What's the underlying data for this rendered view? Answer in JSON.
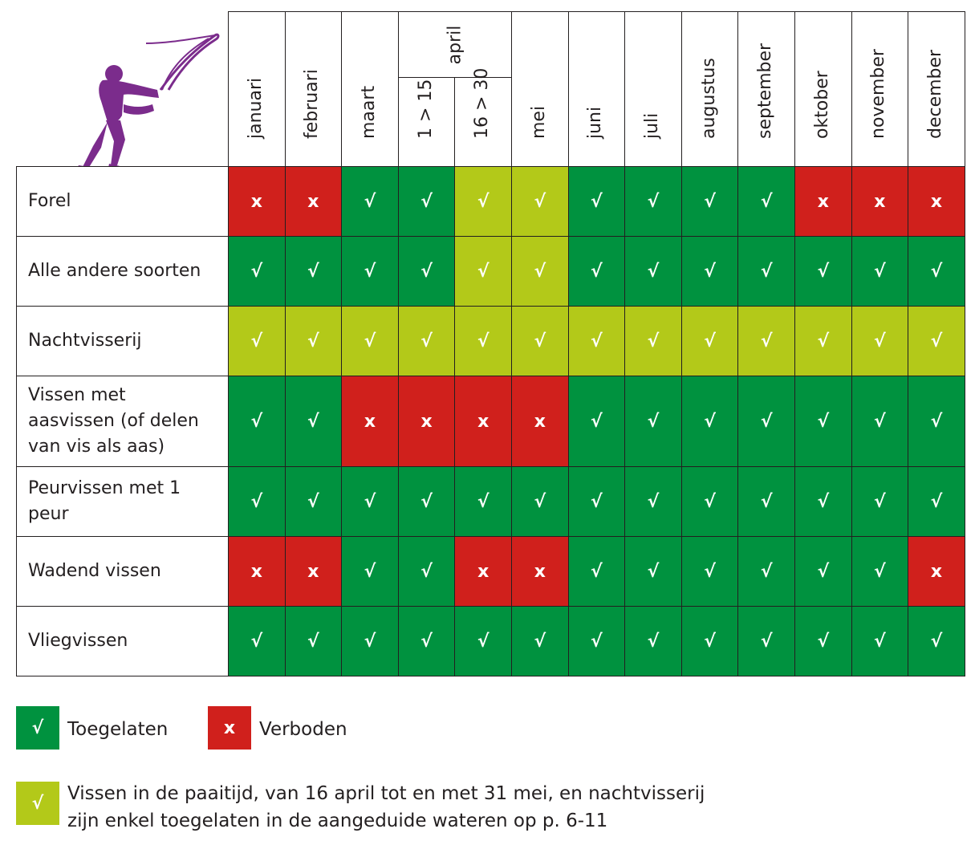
{
  "months": [
    "januari",
    "februari",
    "maart",
    "1 > 15",
    "16 > 30",
    "mei",
    "juni",
    "juli",
    "augustus",
    "september",
    "oktober",
    "november",
    "december"
  ],
  "april_label": "april",
  "rows": [
    {
      "label": "Forel",
      "cells": [
        "x",
        "x",
        "g",
        "g",
        "l",
        "l",
        "g",
        "g",
        "g",
        "g",
        "x",
        "x",
        "x"
      ]
    },
    {
      "label": "Alle andere soorten",
      "cells": [
        "g",
        "g",
        "g",
        "g",
        "l",
        "l",
        "g",
        "g",
        "g",
        "g",
        "g",
        "g",
        "g"
      ]
    },
    {
      "label": "Nachtvisserij",
      "cells": [
        "l",
        "l",
        "l",
        "l",
        "l",
        "l",
        "l",
        "l",
        "l",
        "l",
        "l",
        "l",
        "l"
      ]
    },
    {
      "label": "Vissen met aasvissen (of delen van vis als aas)",
      "cells": [
        "g",
        "g",
        "x",
        "x",
        "x",
        "x",
        "g",
        "g",
        "g",
        "g",
        "g",
        "g",
        "g"
      ]
    },
    {
      "label": "Peurvissen met 1 peur",
      "cells": [
        "g",
        "g",
        "g",
        "g",
        "g",
        "g",
        "g",
        "g",
        "g",
        "g",
        "g",
        "g",
        "g"
      ]
    },
    {
      "label": "Wadend vissen",
      "cells": [
        "x",
        "x",
        "g",
        "g",
        "x",
        "x",
        "g",
        "g",
        "g",
        "g",
        "g",
        "g",
        "x"
      ]
    },
    {
      "label": "Vliegvissen",
      "cells": [
        "g",
        "g",
        "g",
        "g",
        "g",
        "g",
        "g",
        "g",
        "g",
        "g",
        "g",
        "g",
        "g"
      ]
    }
  ],
  "symbols": {
    "check": "√",
    "cross": "x"
  },
  "colors": {
    "green": "#00923f",
    "red": "#d0201c",
    "lime": "#b3c919",
    "figure": "#7b2c8c"
  },
  "legend": {
    "allowed": "Toegelaten",
    "forbidden": "Verboden",
    "spawning_note": "Vissen in de paaitijd, van 16 april tot en met 31 mei, en nachtvisserij zijn enkel toegelaten in de aangeduide wateren op p. 6-11"
  },
  "icons": {
    "header_figure": "fisherman-casting-icon"
  }
}
